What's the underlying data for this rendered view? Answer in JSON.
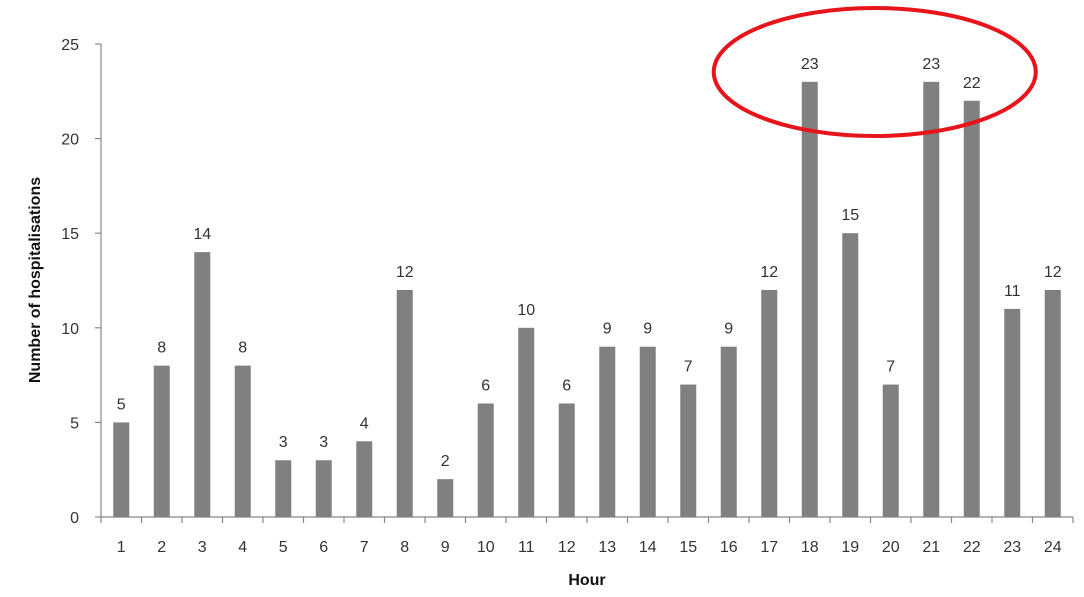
{
  "chart_data": {
    "type": "bar",
    "title": "",
    "xlabel": "Hour",
    "ylabel": "Number of hospitalisations",
    "categories": [
      "1",
      "2",
      "3",
      "4",
      "5",
      "6",
      "7",
      "8",
      "9",
      "10",
      "11",
      "12",
      "13",
      "14",
      "15",
      "16",
      "17",
      "18",
      "19",
      "20",
      "21",
      "22",
      "23",
      "24"
    ],
    "values": [
      5,
      8,
      14,
      8,
      3,
      3,
      4,
      12,
      2,
      6,
      10,
      6,
      9,
      9,
      7,
      9,
      12,
      23,
      15,
      7,
      23,
      22,
      11,
      12
    ],
    "data_labels": [
      "5",
      "8",
      "14",
      "8",
      "3",
      "3",
      "4",
      "12",
      "2",
      "6",
      "10",
      "6",
      "9",
      "9",
      "7",
      "9",
      "12",
      "23",
      "15",
      "7",
      "23",
      "22",
      "11",
      "12"
    ],
    "ylim": [
      0,
      25
    ],
    "yticks": [
      "0",
      "5",
      "10",
      "15",
      "20",
      "25"
    ],
    "grid": false,
    "bar_color": "#808080",
    "axis_color": "#888888",
    "highlight": {
      "shape": "ellipse",
      "color": "#e8141c",
      "encloses_categories": [
        "18",
        "21",
        "22"
      ]
    }
  }
}
